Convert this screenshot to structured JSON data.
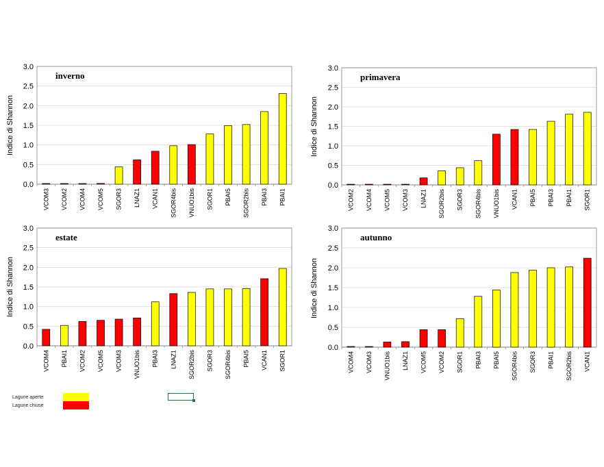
{
  "colors": {
    "aperte": "#ffff00",
    "chiuse": "#ff0000",
    "outline": "#000000",
    "grid": "#d9d9d9"
  },
  "legend": {
    "aperte_label": "Lagune aperte",
    "chiuse_label": "Lagune chiuse"
  },
  "chart_data": [
    {
      "type": "bar",
      "title": "inverno",
      "ylabel": "Indice di Shannon",
      "xlabel": "",
      "ylim": [
        0,
        3
      ],
      "yticks": [
        "0.0",
        "0.5",
        "1.0",
        "1.5",
        "2.0",
        "2.5",
        "3.0"
      ],
      "categories": [
        "VCOM3",
        "VCOM2",
        "VCOM4",
        "VCOM5",
        "SGOR3",
        "LNAZ1",
        "VCAN1",
        "SGOR4bis",
        "VNUO1bis",
        "SGOR1",
        "PBAI5",
        "SGOR2bis",
        "PBAI3",
        "PBAI1"
      ],
      "values": [
        0.01,
        0.01,
        0.01,
        0.02,
        0.44,
        0.62,
        0.84,
        0.98,
        1.01,
        1.28,
        1.49,
        1.52,
        1.85,
        2.31
      ],
      "groups": [
        "chiuse",
        "chiuse",
        "chiuse",
        "chiuse",
        "aperte",
        "chiuse",
        "chiuse",
        "aperte",
        "chiuse",
        "aperte",
        "aperte",
        "aperte",
        "aperte",
        "aperte"
      ]
    },
    {
      "type": "bar",
      "title": "primavera",
      "ylabel": "Indice di Shannon",
      "xlabel": "",
      "ylim": [
        0,
        3
      ],
      "yticks": [
        "0.0",
        "0.5",
        "1.0",
        "1.5",
        "2.0",
        "2.5",
        "3.0"
      ],
      "categories": [
        "VCOM2",
        "VCOM4",
        "VCOM5",
        "VCOM3",
        "LNAZ1",
        "SGOR2bis",
        "SGOR3",
        "SGOR4bis",
        "VNUO1bis",
        "VCAN1",
        "PBAI5",
        "PBAI3",
        "PBAI1",
        "SGOR1"
      ],
      "values": [
        0.01,
        0.01,
        0.01,
        0.01,
        0.18,
        0.36,
        0.44,
        0.62,
        1.3,
        1.42,
        1.42,
        1.63,
        1.81,
        1.86
      ],
      "groups": [
        "chiuse",
        "chiuse",
        "chiuse",
        "chiuse",
        "chiuse",
        "aperte",
        "aperte",
        "aperte",
        "chiuse",
        "chiuse",
        "aperte",
        "aperte",
        "aperte",
        "aperte"
      ]
    },
    {
      "type": "bar",
      "title": "estate",
      "ylabel": "Indice di Shannon",
      "xlabel": "",
      "ylim": [
        0,
        3
      ],
      "yticks": [
        "0.0",
        "0.5",
        "1.0",
        "1.5",
        "2.0",
        "2.5",
        "3.0"
      ],
      "categories": [
        "VCOM4",
        "PBAI1",
        "VCOM2",
        "VCOM5",
        "VCOM3",
        "VNUO1bis",
        "PBAI3",
        "LNAZ1",
        "SGOR2bis",
        "SGOR3",
        "SGOR4bis",
        "PBAI5",
        "VCAN1",
        "SGOR1"
      ],
      "values": [
        0.42,
        0.52,
        0.62,
        0.65,
        0.68,
        0.71,
        1.12,
        1.33,
        1.36,
        1.45,
        1.45,
        1.46,
        1.71,
        1.97
      ],
      "groups": [
        "chiuse",
        "aperte",
        "chiuse",
        "chiuse",
        "chiuse",
        "chiuse",
        "aperte",
        "chiuse",
        "aperte",
        "aperte",
        "aperte",
        "aperte",
        "chiuse",
        "aperte"
      ]
    },
    {
      "type": "bar",
      "title": "autunno",
      "ylabel": "Indice di Shannon",
      "xlabel": "",
      "ylim": [
        0,
        3
      ],
      "yticks": [
        "0.0",
        "0.5",
        "1.0",
        "1.5",
        "2.0",
        "2.5",
        "3.0"
      ],
      "categories": [
        "VCOM4",
        "VCOM3",
        "VNUO1bis",
        "LNAZ1",
        "VCOM5",
        "VCOM2",
        "SGOR1",
        "PBAI3",
        "PBAI5",
        "SGOR4bis",
        "SGOR3",
        "PBAI1",
        "SGOR2bis",
        "VCAN1"
      ],
      "values": [
        0.01,
        0.01,
        0.13,
        0.14,
        0.44,
        0.44,
        0.72,
        1.28,
        1.44,
        1.88,
        1.94,
        2.0,
        2.02,
        2.24
      ],
      "groups": [
        "chiuse",
        "chiuse",
        "chiuse",
        "chiuse",
        "chiuse",
        "chiuse",
        "aperte",
        "aperte",
        "aperte",
        "aperte",
        "aperte",
        "aperte",
        "aperte",
        "chiuse"
      ]
    }
  ]
}
